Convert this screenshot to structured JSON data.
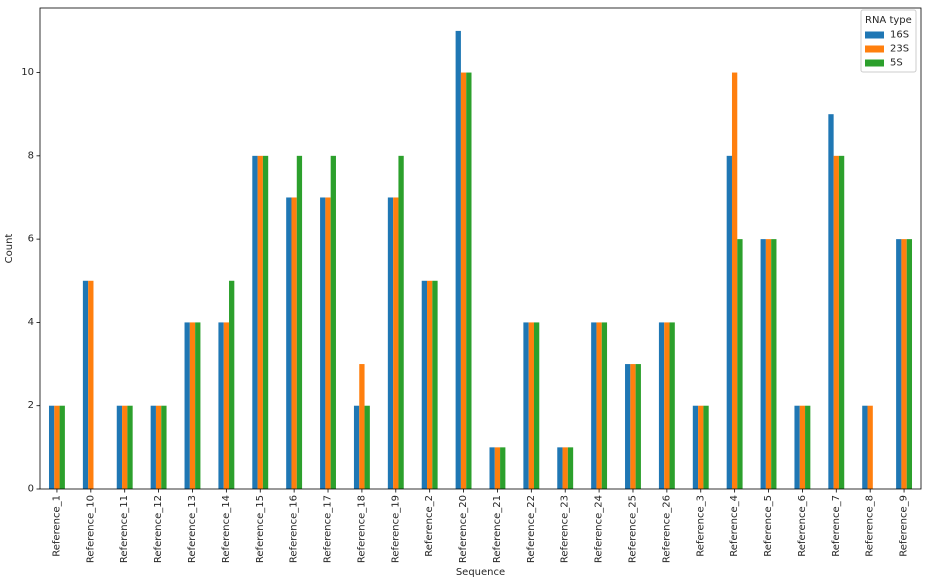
{
  "chart_data": {
    "type": "bar",
    "xlabel": "Sequence",
    "ylabel": "Count",
    "ylim": [
      0,
      11.55
    ],
    "yticks": [
      0,
      2,
      4,
      6,
      8,
      10
    ],
    "grid": false,
    "legend": {
      "title": "RNA type",
      "placement": "top-right"
    },
    "categories": [
      "Reference_1",
      "Reference_10",
      "Reference_11",
      "Reference_12",
      "Reference_13",
      "Reference_14",
      "Reference_15",
      "Reference_16",
      "Reference_17",
      "Reference_18",
      "Reference_19",
      "Reference_2",
      "Reference_20",
      "Reference_21",
      "Reference_22",
      "Reference_23",
      "Reference_24",
      "Reference_25",
      "Reference_26",
      "Reference_3",
      "Reference_4",
      "Reference_5",
      "Reference_6",
      "Reference_7",
      "Reference_8",
      "Reference_9"
    ],
    "series": [
      {
        "name": "16S",
        "color": "#1f77b4",
        "values": [
          2,
          5,
          2,
          2,
          4,
          4,
          8,
          7,
          7,
          2,
          7,
          5,
          11,
          1,
          4,
          1,
          4,
          3,
          4,
          2,
          8,
          6,
          2,
          9,
          2,
          6
        ]
      },
      {
        "name": "23S",
        "color": "#ff7f0e",
        "values": [
          2,
          5,
          2,
          2,
          4,
          4,
          8,
          7,
          7,
          3,
          7,
          5,
          10,
          1,
          4,
          1,
          4,
          3,
          4,
          2,
          10,
          6,
          2,
          8,
          2,
          6
        ]
      },
      {
        "name": "5S",
        "color": "#2ca02c",
        "values": [
          2,
          0,
          2,
          2,
          4,
          5,
          8,
          8,
          8,
          2,
          8,
          5,
          10,
          1,
          4,
          1,
          4,
          3,
          4,
          2,
          6,
          6,
          2,
          8,
          0,
          6
        ]
      }
    ]
  }
}
